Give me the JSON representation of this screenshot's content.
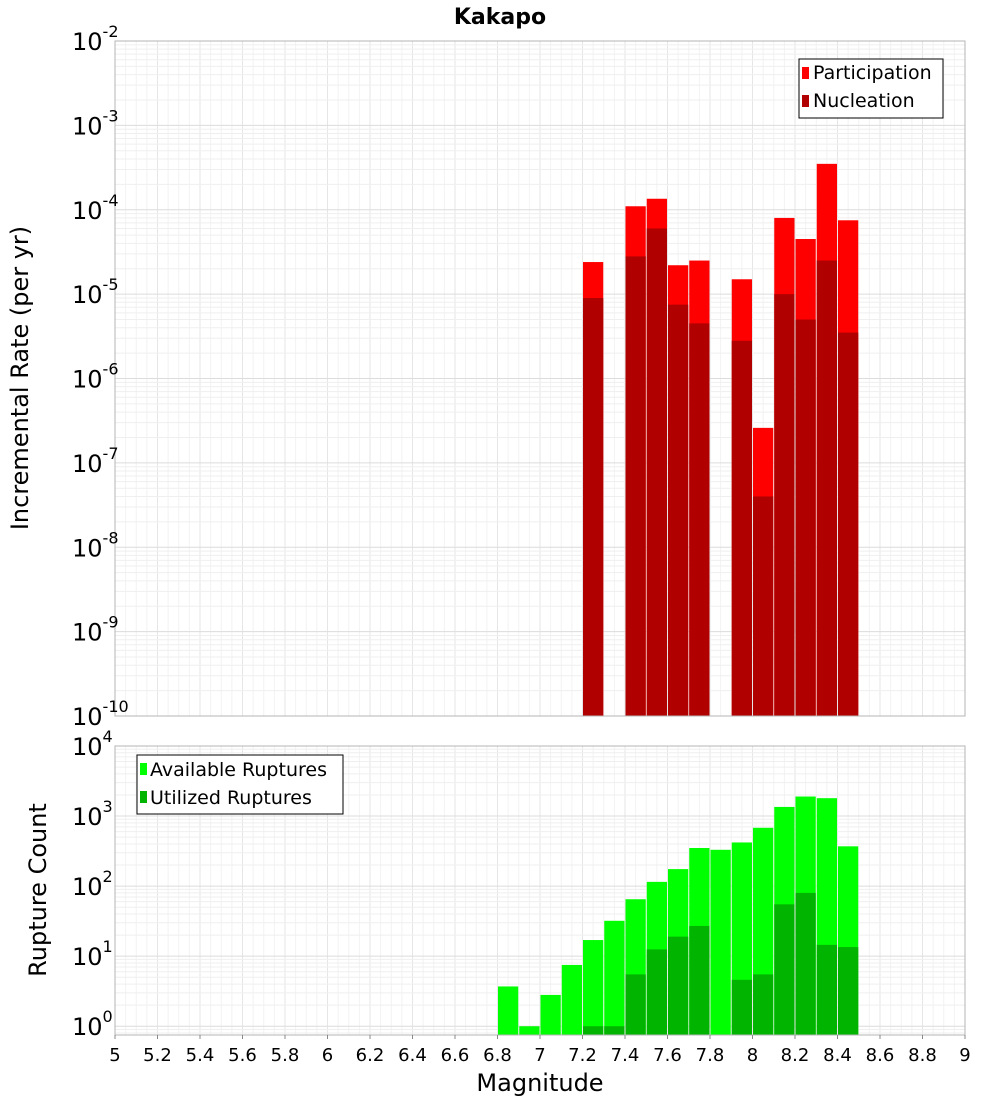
{
  "chart_data": [
    {
      "type": "bar",
      "title": "Kakapo",
      "xlabel": "",
      "ylabel": "Incremental Rate (per yr)",
      "yscale": "log",
      "ylim": [
        1e-10,
        0.01
      ],
      "xlim": [
        5,
        9
      ],
      "grid": true,
      "legend_position": "top-right",
      "y_tick_labels": [
        {
          "base": "10",
          "exp": "-10"
        },
        {
          "base": "10",
          "exp": "-9"
        },
        {
          "base": "10",
          "exp": "-8"
        },
        {
          "base": "10",
          "exp": "-7"
        },
        {
          "base": "10",
          "exp": "-6"
        },
        {
          "base": "10",
          "exp": "-5"
        },
        {
          "base": "10",
          "exp": "-4"
        },
        {
          "base": "10",
          "exp": "-3"
        },
        {
          "base": "10",
          "exp": "-2"
        }
      ],
      "bar_width": 0.1,
      "x": [
        7.25,
        7.45,
        7.55,
        7.65,
        7.75,
        7.95,
        8.05,
        8.15,
        8.25,
        8.35,
        8.45
      ],
      "series": [
        {
          "name": "Participation",
          "color": "#ff0000",
          "values": [
            2.4e-05,
            0.00011,
            0.000135,
            2.2e-05,
            2.5e-05,
            1.5e-05,
            2.6e-07,
            8e-05,
            4.5e-05,
            0.00035,
            7.5e-05
          ]
        },
        {
          "name": "Nucleation",
          "color": "#b00000",
          "values": [
            9e-06,
            2.8e-05,
            6e-05,
            7.5e-06,
            4.5e-06,
            2.8e-06,
            4e-08,
            1e-05,
            5e-06,
            2.5e-05,
            3.5e-06
          ]
        }
      ]
    },
    {
      "type": "bar",
      "title": "",
      "xlabel": "Magnitude",
      "ylabel": "Rupture Count",
      "yscale": "log",
      "ylim": [
        0.75,
        10000
      ],
      "xlim": [
        5,
        9
      ],
      "grid": true,
      "legend_position": "top-left",
      "x_tick_labels": [
        "5",
        "5.2",
        "5.4",
        "5.6",
        "5.8",
        "6",
        "6.2",
        "6.4",
        "6.6",
        "6.8",
        "7",
        "7.2",
        "7.4",
        "7.6",
        "7.8",
        "8",
        "8.2",
        "8.4",
        "8.6",
        "8.8",
        "9"
      ],
      "y_tick_labels": [
        {
          "base": "10",
          "exp": "0"
        },
        {
          "base": "10",
          "exp": "1"
        },
        {
          "base": "10",
          "exp": "2"
        },
        {
          "base": "10",
          "exp": "3"
        },
        {
          "base": "10",
          "exp": "4"
        }
      ],
      "bar_width": 0.1,
      "x": [
        6.85,
        6.95,
        7.05,
        7.15,
        7.25,
        7.35,
        7.45,
        7.55,
        7.65,
        7.75,
        7.85,
        7.95,
        8.05,
        8.15,
        8.25,
        8.35,
        8.45
      ],
      "series": [
        {
          "name": "Available Ruptures",
          "color": "#00ff00",
          "values": [
            3.7,
            1.0,
            2.8,
            7.5,
            17,
            32,
            65,
            115,
            175,
            350,
            330,
            420,
            680,
            1350,
            1900,
            1800,
            370
          ]
        },
        {
          "name": "Utilized Ruptures",
          "color": "#00b400",
          "values": [
            null,
            null,
            null,
            null,
            1.0,
            1.0,
            5.5,
            12.5,
            19,
            27,
            null,
            4.6,
            5.5,
            55,
            80,
            14.5,
            13.5
          ]
        }
      ]
    }
  ]
}
